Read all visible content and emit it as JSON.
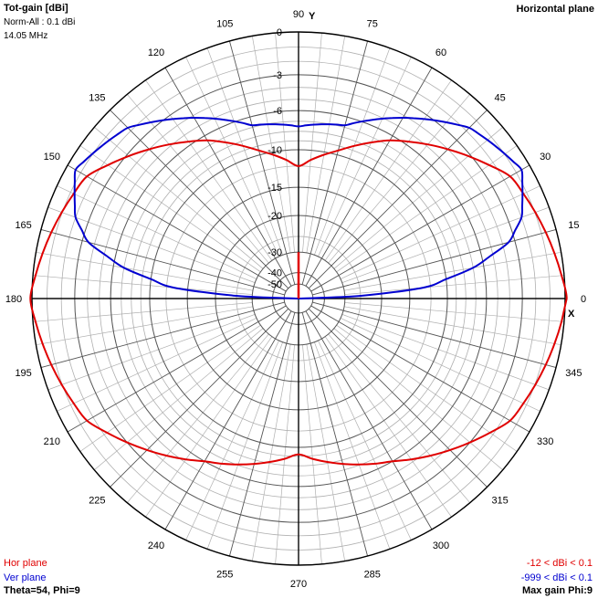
{
  "header": {
    "title": "Tot-gain [dBi]",
    "norm": "Norm-All : 0.1 dBi",
    "freq": "14.05 MHz",
    "plane": "Horizontal plane"
  },
  "footer": {
    "hor_label": "Hor plane",
    "ver_label": "Ver plane",
    "theta_phi": "Theta=54, Phi=9",
    "hor_range": "-12 < dBi < 0.1",
    "ver_range": "-999 < dBi < 0.1",
    "max_gain": "Max gain Phi:9"
  },
  "axis_letters": {
    "y": "Y",
    "x": "X"
  },
  "colors": {
    "hor": "#e00000",
    "ver": "#0000d0",
    "grid": "#000000",
    "gridFine": "#b0b0b0"
  },
  "chart_data": {
    "type": "polar",
    "angle_labels": [
      "0",
      "15",
      "30",
      "45",
      "60",
      "75",
      "90",
      "105",
      "120",
      "135",
      "150",
      "165",
      "180",
      "195",
      "210",
      "225",
      "240",
      "255",
      "270",
      "285",
      "300",
      "315",
      "330",
      "345"
    ],
    "ring_labels": [
      "0",
      "-3",
      "-6",
      "-10",
      "-15",
      "-20",
      "-30",
      "-40",
      "-50"
    ],
    "ring_values_db": [
      0,
      -3,
      -6,
      -10,
      -15,
      -20,
      -30,
      -40,
      -50
    ],
    "series": [
      {
        "name": "Hor plane",
        "range": "-12 < dBi < 0.1",
        "angles_deg": [
          0,
          30,
          60,
          75,
          90,
          105,
          120,
          150,
          180,
          210,
          240,
          270,
          300,
          330
        ],
        "gain_db": [
          0.1,
          -1.5,
          -6.5,
          -9.5,
          -12,
          -9.5,
          -6.5,
          -1.5,
          0.1,
          -1.5,
          -6,
          -9.2,
          -6,
          -1.5
        ]
      },
      {
        "name": "Ver plane",
        "range": "-999 < dBi < 0.1",
        "angles_deg": [
          0,
          5,
          10,
          15,
          20,
          30,
          45,
          60,
          75,
          90,
          105,
          120,
          135,
          150,
          160,
          165,
          170,
          175,
          180
        ],
        "gain_db": [
          -999,
          -13,
          -7,
          -3.5,
          -2,
          -0.6,
          -1.7,
          -4.2,
          -6.8,
          -7.5,
          -6.8,
          -4.2,
          -1.7,
          -0.6,
          -2,
          -3.5,
          -7,
          -13,
          -999
        ]
      },
      {
        "name": "Theta=54, Phi=9",
        "angles_deg": [
          90
        ],
        "gain_db": [
          -30
        ]
      }
    ]
  }
}
